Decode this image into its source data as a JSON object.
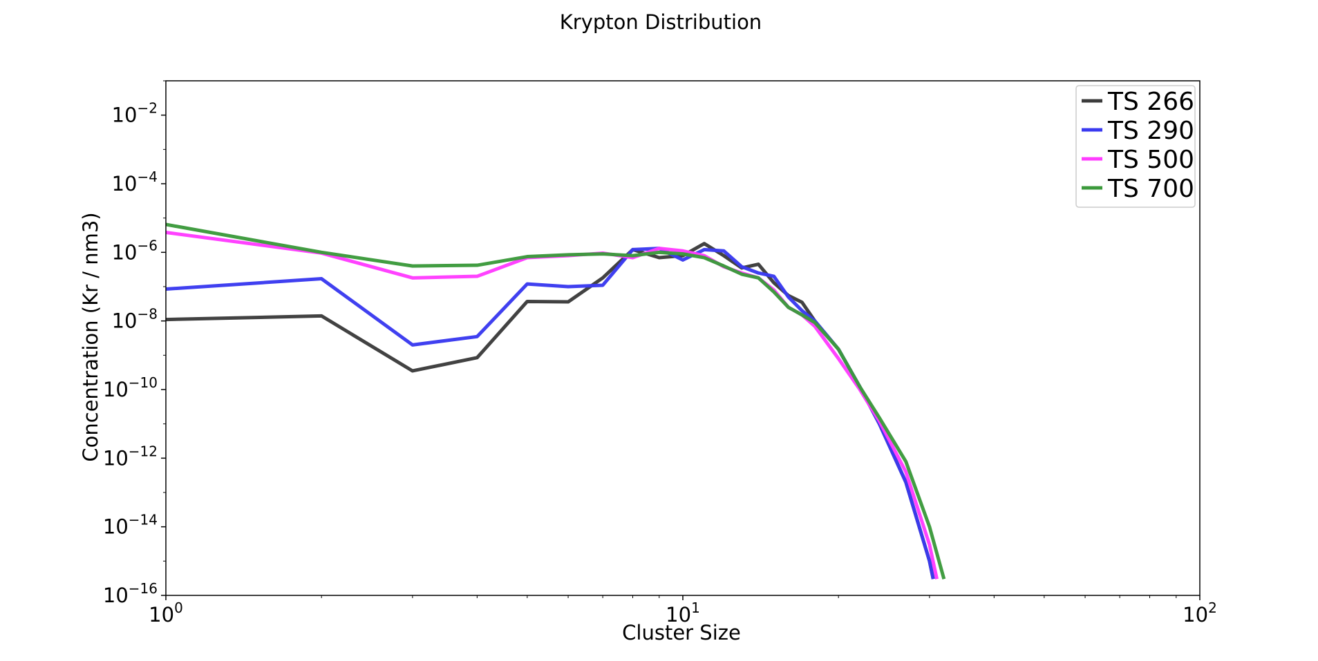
{
  "chart_data": {
    "type": "line",
    "title": "Krypton Distribution",
    "xlabel": "Cluster Size",
    "ylabel": "Concentration (Kr / nm3)",
    "xscale": "log",
    "yscale": "log",
    "xlim": [
      1,
      100
    ],
    "ylim": [
      1e-16,
      0.1
    ],
    "grid": false,
    "legend_position": "top-right",
    "x_ticks": [
      {
        "value": 1,
        "base": "10",
        "exp": "0"
      },
      {
        "value": 10,
        "base": "10",
        "exp": "1"
      },
      {
        "value": 100,
        "base": "10",
        "exp": "2"
      }
    ],
    "y_ticks": [
      {
        "value": 0.01,
        "base": "10",
        "exp": "−2"
      },
      {
        "value": 0.0001,
        "base": "10",
        "exp": "−4"
      },
      {
        "value": 1e-06,
        "base": "10",
        "exp": "−6"
      },
      {
        "value": 1e-08,
        "base": "10",
        "exp": "−8"
      },
      {
        "value": 1e-10,
        "base": "10",
        "exp": "−10"
      },
      {
        "value": 1e-12,
        "base": "10",
        "exp": "−12"
      },
      {
        "value": 1e-14,
        "base": "10",
        "exp": "−14"
      },
      {
        "value": 1e-16,
        "base": "10",
        "exp": "−16"
      }
    ],
    "series": [
      {
        "name": "TS 266",
        "color": "#3c3c3c",
        "x": [
          1,
          2,
          3,
          4,
          5,
          6,
          7,
          8,
          9,
          10,
          11,
          12,
          13,
          14,
          15,
          16,
          17,
          18,
          20,
          22,
          24,
          27,
          30,
          30.5
        ],
        "y": [
          1.1e-08,
          1.4e-08,
          3.5e-10,
          8.5e-10,
          3.7e-08,
          3.6e-08,
          1.8e-07,
          1.2e-06,
          7e-07,
          8e-07,
          1.8e-06,
          8e-07,
          3.5e-07,
          4.5e-07,
          1.3e-07,
          5.5e-08,
          3.5e-08,
          1e-08,
          1.5e-09,
          1.2e-10,
          1e-11,
          2e-13,
          1e-15,
          3e-16
        ]
      },
      {
        "name": "TS 290",
        "color": "#3a3af0",
        "x": [
          1,
          2,
          3,
          4,
          5,
          6,
          7,
          8,
          9,
          10,
          11,
          12,
          13,
          14,
          15,
          16,
          17,
          18,
          20,
          22,
          24,
          27,
          30,
          30.5
        ],
        "y": [
          8.5e-08,
          1.7e-07,
          2e-09,
          3.5e-09,
          1.2e-07,
          1e-07,
          1.1e-07,
          1.2e-06,
          1.3e-06,
          6e-07,
          1.2e-06,
          1.1e-06,
          3.8e-07,
          2.5e-07,
          2e-07,
          5e-08,
          2e-08,
          1e-08,
          1.5e-09,
          1.2e-10,
          1e-11,
          2e-13,
          1e-15,
          3e-16
        ]
      },
      {
        "name": "TS 500",
        "color": "#ff3cff",
        "x": [
          1,
          2,
          3,
          4,
          5,
          6,
          7,
          8,
          9,
          10,
          11,
          12,
          13,
          14,
          15,
          16,
          17,
          18,
          20,
          22,
          24,
          27,
          30,
          31
        ],
        "y": [
          3.8e-06,
          9.5e-07,
          1.8e-07,
          2e-07,
          7e-07,
          8e-07,
          9.5e-07,
          7e-07,
          1.3e-06,
          1.1e-06,
          8e-07,
          3.8e-07,
          2.5e-07,
          1.8e-07,
          8e-08,
          2.5e-08,
          1.5e-08,
          7e-09,
          8e-10,
          1e-10,
          1.2e-11,
          4e-13,
          3e-15,
          3e-16
        ]
      },
      {
        "name": "TS 700",
        "color": "#3c9a3c",
        "x": [
          1,
          2,
          3,
          4,
          5,
          6,
          7,
          8,
          9,
          10,
          11,
          12,
          13,
          14,
          15,
          16,
          17,
          18,
          20,
          22,
          24,
          27,
          30,
          32
        ],
        "y": [
          6.5e-06,
          1e-06,
          4e-07,
          4.2e-07,
          7.5e-07,
          8.5e-07,
          9e-07,
          8e-07,
          1e-06,
          9e-07,
          7e-07,
          4e-07,
          2.3e-07,
          1.8e-07,
          7e-08,
          2.5e-08,
          1.5e-08,
          9e-09,
          1.5e-09,
          1.2e-10,
          1.5e-11,
          8e-13,
          1e-14,
          3e-16
        ]
      }
    ]
  }
}
